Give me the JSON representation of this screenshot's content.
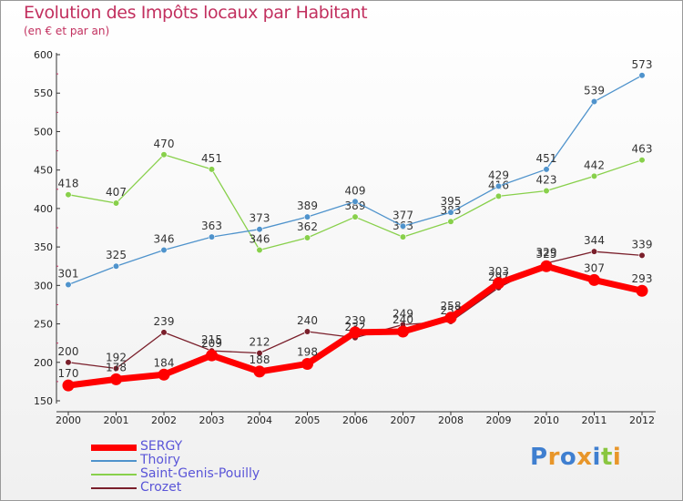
{
  "title": "Evolution des Impôts locaux par Habitant",
  "subtitle": "(en € et par an)",
  "logo": "Proxiti",
  "chart_data": {
    "type": "line",
    "title": "Evolution des Impôts locaux par Habitant",
    "ylabel": "(en € et par an)",
    "xlabel": "",
    "ylim": [
      150,
      600
    ],
    "yticks": [
      150,
      200,
      250,
      300,
      350,
      400,
      450,
      500,
      550,
      600
    ],
    "x": [
      "2000",
      "2001",
      "2002",
      "2003",
      "2004",
      "2005",
      "2006",
      "2007",
      "2008",
      "2009",
      "2010",
      "2011",
      "2012"
    ],
    "series": [
      {
        "name": "SERGY",
        "color": "#ff0000",
        "values": [
          170,
          178,
          184,
          209,
          188,
          198,
          239,
          240,
          258,
          303,
          325,
          307,
          293
        ]
      },
      {
        "name": "Thoiry",
        "color": "#4f93cc",
        "values": [
          301,
          325,
          346,
          363,
          373,
          389,
          409,
          377,
          395,
          429,
          451,
          539,
          573
        ]
      },
      {
        "name": "Saint-Genis-Pouilly",
        "color": "#88d04b",
        "values": [
          418,
          407,
          470,
          451,
          346,
          362,
          389,
          363,
          383,
          416,
          423,
          442,
          463
        ]
      },
      {
        "name": "Crozet",
        "color": "#7a1f2b",
        "values": [
          200,
          192,
          239,
          215,
          212,
          240,
          232,
          249,
          253,
          297,
          329,
          344,
          339
        ]
      }
    ],
    "legend_position": "bottom-left",
    "grid": false
  }
}
